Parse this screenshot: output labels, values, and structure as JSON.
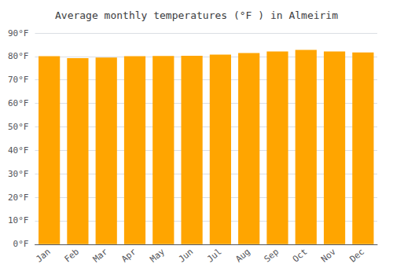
{
  "chart_data": {
    "type": "bar",
    "title": "Average monthly temperatures (°F ) in Almeirim",
    "categories": [
      "Jan",
      "Feb",
      "Mar",
      "Apr",
      "May",
      "Jun",
      "Jul",
      "Aug",
      "Sep",
      "Oct",
      "Nov",
      "Dec"
    ],
    "values": [
      80.1,
      79.3,
      79.5,
      80.1,
      80.2,
      80.3,
      80.8,
      81.5,
      82.1,
      82.8,
      82.1,
      81.7
    ],
    "color": "#FFA500",
    "ylim": [
      0,
      90
    ],
    "yticks": [
      {
        "value": 0,
        "label": "0°F"
      },
      {
        "value": 10,
        "label": "10°F"
      },
      {
        "value": 20,
        "label": "20°F"
      },
      {
        "value": 30,
        "label": "30°F"
      },
      {
        "value": 40,
        "label": "40°F"
      },
      {
        "value": 50,
        "label": "50°F"
      },
      {
        "value": 60,
        "label": "60°F"
      },
      {
        "value": 70,
        "label": "70°F"
      },
      {
        "value": 80,
        "label": "80°F"
      },
      {
        "value": 90,
        "label": "90°F"
      }
    ],
    "grid": true
  }
}
